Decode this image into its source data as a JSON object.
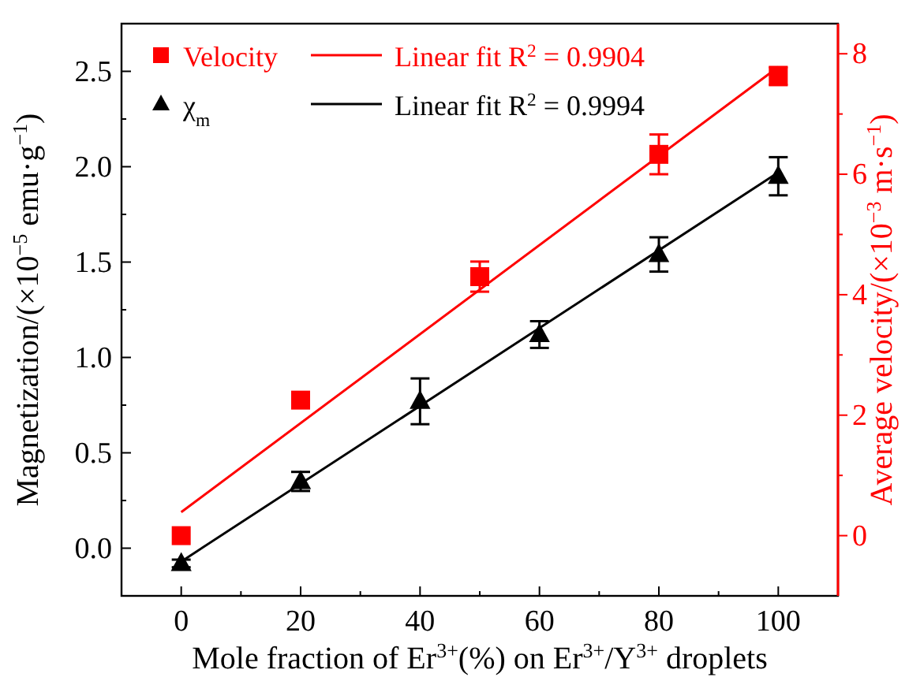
{
  "chart_data": {
    "type": "scatter",
    "xlabel": "Mole fraction of Er$^{3+}$(%) on Er$^{3+}$/Y$^{3+}$ droplets",
    "ylabel": "Magnetization/(×10$^{−5}$ emu·g$^{−1}$)",
    "y2label": "Average velocity/(×10$^{−3}$ m·s$^{−1}$)",
    "xlim": [
      -10,
      110
    ],
    "xticks": [
      0,
      {
        "value": 10,
        "label": null
      },
      20,
      {
        "value": 30,
        "label": null
      },
      40,
      {
        "value": 50,
        "label": null
      },
      60,
      {
        "value": 70,
        "label": null
      },
      80,
      {
        "value": 90,
        "label": null
      },
      100
    ],
    "ylim": [
      -0.25,
      2.75
    ],
    "yticks": [
      {
        "value": 0,
        "label": "0.0"
      },
      {
        "value": 0.25,
        "label": null
      },
      {
        "value": 0.5,
        "label": "0.5"
      },
      {
        "value": 0.75,
        "label": null
      },
      {
        "value": 1,
        "label": "1.0"
      },
      {
        "value": 1.25,
        "label": null
      },
      {
        "value": 1.5,
        "label": "1.5"
      },
      {
        "value": 1.75,
        "label": null
      },
      {
        "value": 2,
        "label": "2.0"
      },
      {
        "value": 2.25,
        "label": null
      },
      {
        "value": 2.5,
        "label": "2.5"
      }
    ],
    "y2lim": [
      -1,
      8.5
    ],
    "y2ticks": [
      0,
      {
        "value": 1,
        "label": null
      },
      2,
      {
        "value": 3,
        "label": null
      },
      4,
      {
        "value": 5,
        "label": null
      },
      6,
      {
        "value": 7,
        "label": null
      },
      8
    ],
    "legend": "top left",
    "grid": false,
    "series": [
      {
        "name": "Velocity",
        "marker": "square",
        "axis": "y2",
        "color": "#ff0000",
        "x": [
          0,
          20,
          50,
          80,
          100
        ],
        "values": [
          0.0,
          2.25,
          4.3,
          6.33,
          7.63
        ],
        "errors": [
          null,
          0.05,
          0.25,
          0.33,
          0.15
        ]
      },
      {
        "name": "Linear fit R$^{2}$ = 0.9904",
        "type": "line",
        "axis": "y2",
        "color": "#ff0000",
        "x": [
          0,
          100
        ],
        "values": [
          0.39,
          7.78
        ]
      },
      {
        "name": "χ$_{m}$",
        "marker": "triangle",
        "color": "#000000",
        "x": [
          0,
          20,
          40,
          60,
          80,
          100
        ],
        "values": [
          -0.08,
          0.35,
          0.77,
          1.12,
          1.54,
          1.95
        ],
        "errors": [
          0.02,
          0.05,
          0.12,
          0.07,
          0.09,
          0.1
        ]
      },
      {
        "name": "Linear fit R$^{2}$ = 0.9994",
        "type": "line",
        "color": "#000000",
        "x": [
          0,
          100
        ],
        "values": [
          -0.07,
          1.97
        ]
      }
    ]
  }
}
